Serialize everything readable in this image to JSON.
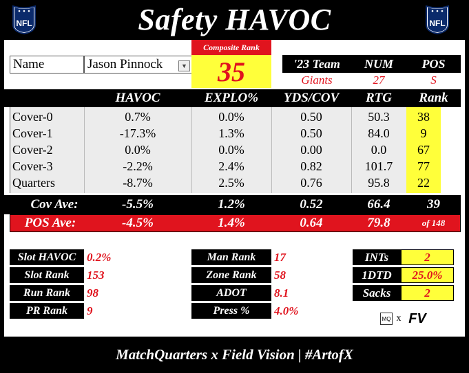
{
  "title": "Safety HAVOC",
  "logo_text": "NFL",
  "footer": "MatchQuarters x Field Vision | #ArtofX",
  "player": {
    "name_label": "Name",
    "name": "Jason Pinnock",
    "composite_rank_label": "Composite Rank",
    "composite_rank": "35",
    "team_label": "'23 Team",
    "team": "Giants",
    "num_label": "NUM",
    "num": "27",
    "pos_label": "POS",
    "pos": "S"
  },
  "table": {
    "columns": [
      "HAVOC",
      "EXPLO%",
      "YDS/COV",
      "RTG",
      "Rank"
    ],
    "rows": [
      {
        "label": "Cover-0",
        "havoc": "0.7%",
        "explo": "0.0%",
        "yds": "0.50",
        "rtg": "50.3",
        "rank": "38"
      },
      {
        "label": "Cover-1",
        "havoc": "-17.3%",
        "explo": "1.3%",
        "yds": "0.50",
        "rtg": "84.0",
        "rank": "9"
      },
      {
        "label": "Cover-2",
        "havoc": "0.0%",
        "explo": "0.0%",
        "yds": "0.00",
        "rtg": "0.0",
        "rank": "67"
      },
      {
        "label": "Cover-3",
        "havoc": "-2.2%",
        "explo": "2.4%",
        "yds": "0.82",
        "rtg": "101.7",
        "rank": "77"
      },
      {
        "label": "Quarters",
        "havoc": "-8.7%",
        "explo": "2.5%",
        "yds": "0.76",
        "rtg": "95.8",
        "rank": "22"
      }
    ],
    "cov_ave": {
      "label": "Cov Ave:",
      "havoc": "-5.5%",
      "explo": "1.2%",
      "yds": "0.52",
      "rtg": "66.4",
      "rank": "39"
    },
    "pos_ave": {
      "label": "POS Ave:",
      "havoc": "-4.5%",
      "explo": "1.4%",
      "yds": "0.64",
      "rtg": "79.8",
      "rank": "of 148"
    }
  },
  "stats_left": [
    {
      "label": "Slot HAVOC",
      "value": "0.2%"
    },
    {
      "label": "Slot Rank",
      "value": "153"
    },
    {
      "label": "Run Rank",
      "value": "98"
    },
    {
      "label": "PR Rank",
      "value": "9"
    }
  ],
  "stats_mid": [
    {
      "label": "Man Rank",
      "value": "17"
    },
    {
      "label": "Zone Rank",
      "value": "58"
    },
    {
      "label": "ADOT",
      "value": "8.1"
    },
    {
      "label": "Press %",
      "value": "4.0%"
    }
  ],
  "stats_right": [
    {
      "label": "INTs",
      "value": "2"
    },
    {
      "label": "1DTD",
      "value": "25.0%"
    },
    {
      "label": "Sacks",
      "value": "2"
    }
  ],
  "brand": {
    "mq": "MQ",
    "x": "x",
    "fv": "FV"
  }
}
